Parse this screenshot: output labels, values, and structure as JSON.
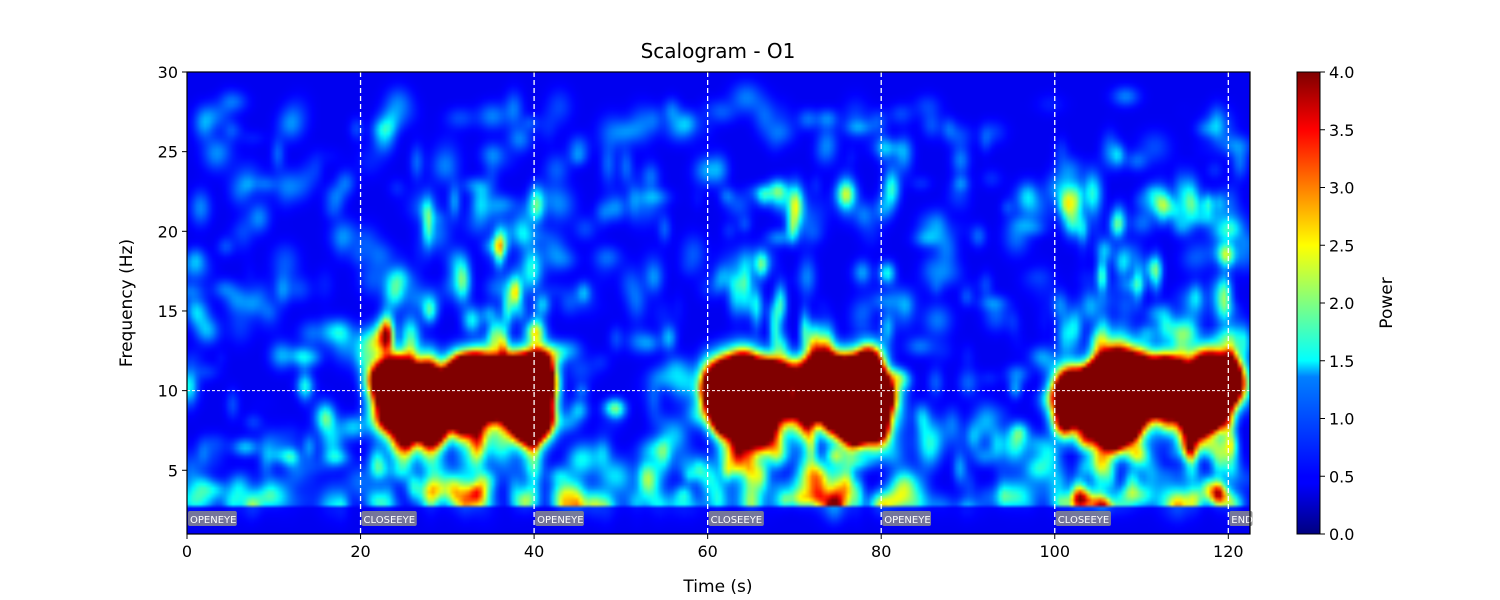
{
  "chart_data": {
    "type": "heatmap",
    "title": "Scalogram - O1",
    "xlabel": "Time (s)",
    "ylabel": "Frequency (Hz)",
    "xlim": [
      0,
      122.5
    ],
    "ylim": [
      1,
      30
    ],
    "x_ticks": [
      0,
      20,
      40,
      60,
      80,
      100,
      120
    ],
    "y_ticks": [
      5,
      10,
      15,
      20,
      25,
      30
    ],
    "colorbar": {
      "label": "Power",
      "range": [
        0.0,
        4.0
      ],
      "ticks": [
        "0.0",
        "0.5",
        "1.0",
        "1.5",
        "2.0",
        "2.5",
        "3.0",
        "3.5",
        "4.0"
      ],
      "colormap": "jet"
    },
    "reference_line_hz": 10,
    "events": [
      {
        "time": 0,
        "label": "OPENEYE"
      },
      {
        "time": 20,
        "label": "CLOSEEYE"
      },
      {
        "time": 40,
        "label": "OPENEYE"
      },
      {
        "time": 60,
        "label": "CLOSEEYE"
      },
      {
        "time": 80,
        "label": "OPENEYE"
      },
      {
        "time": 100,
        "label": "CLOSEEYE"
      },
      {
        "time": 120,
        "label": "END"
      }
    ],
    "alpha_band_hz": [
      7,
      12
    ],
    "high_power_segments": [
      {
        "start": 22,
        "end": 41,
        "peak_power": 4.0
      },
      {
        "start": 61,
        "end": 81,
        "peak_power": 4.0
      },
      {
        "start": 101,
        "end": 121,
        "peak_power": 4.0
      }
    ]
  }
}
